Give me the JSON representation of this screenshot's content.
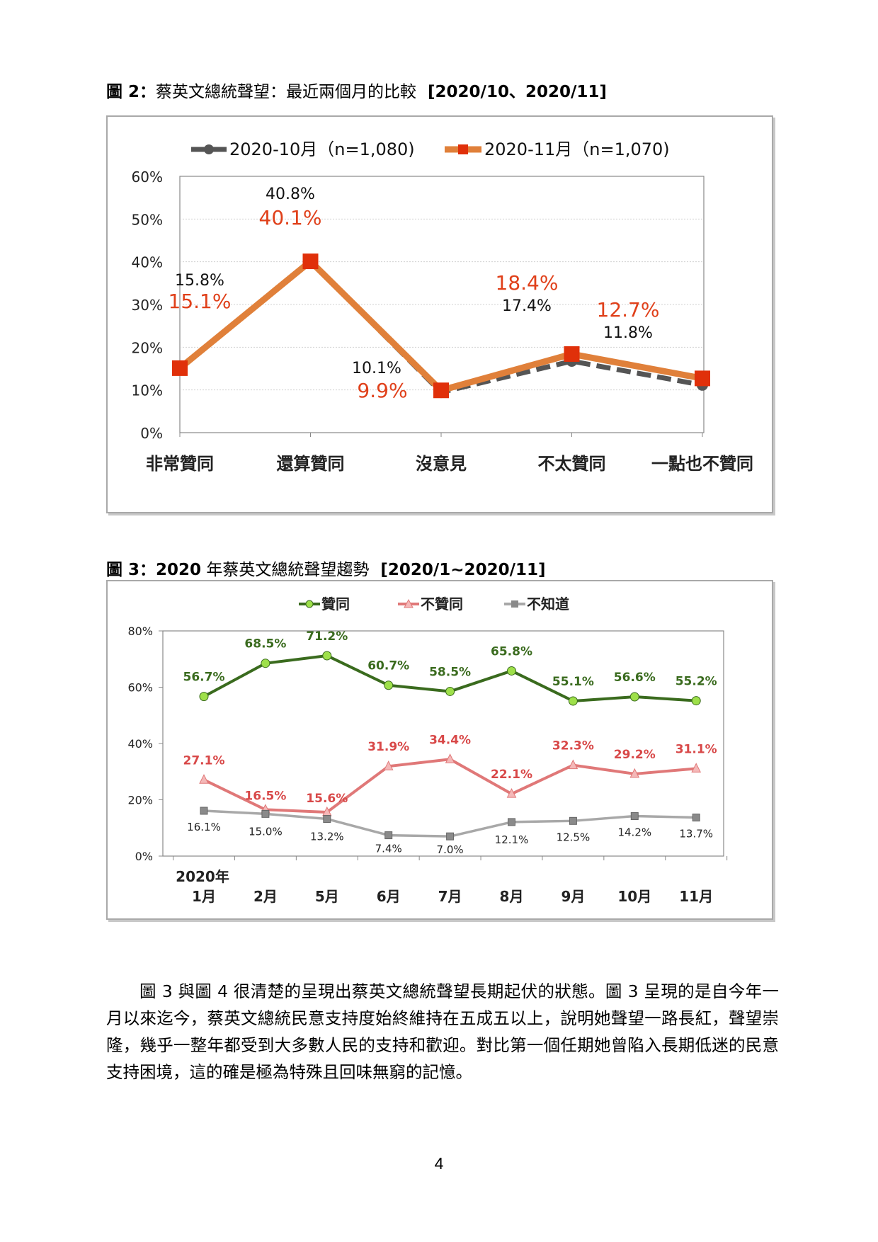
{
  "figure2": {
    "title_label": "圖 2",
    "title_colon": "：",
    "title_text": "蔡英文總統聲望：最近兩個月的比較",
    "title_range": "[2020/10、2020/11]"
  },
  "figure3": {
    "title_label": "圖 3",
    "title_colon": "：",
    "title_year": "2020",
    "title_text": " 年蔡英文總統聲望趨勢",
    "title_range": "[2020/1~2020/11]"
  },
  "body": {
    "paragraph": "圖 3 與圖 4 很清楚的呈現出蔡英文總統聲望長期起伏的狀態。圖 3 呈現的是自今年一月以來迄今，蔡英文總統民意支持度始終維持在五成五以上，說明她聲望一路長紅，聲望崇隆，幾乎一整年都受到大多數人民的支持和歡迎。對比第一個任期她曾陷入長期低迷的民意支持困境，這的確是極為特殊且回味無窮的記憶。"
  },
  "page": {
    "number": "4"
  },
  "chart_data": [
    {
      "type": "line",
      "categories": [
        "非常贊同",
        "還算贊同",
        "沒意見",
        "不太贊同",
        "一點也不贊同"
      ],
      "ylim": [
        0,
        60
      ],
      "yticks": [
        "0%",
        "10%",
        "20%",
        "30%",
        "40%",
        "50%",
        "60%"
      ],
      "grid": true,
      "legend": "top",
      "series": [
        {
          "name": "2020-10月（n=1,080)",
          "values": [
            15.8,
            40.8,
            10.1,
            17.4,
            11.8
          ],
          "labels": [
            "15.8%",
            "40.8%",
            "10.1%",
            "17.4%",
            "11.8%"
          ],
          "color": "#555555",
          "style": "dashed",
          "marker": "circle"
        },
        {
          "name": "2020-11月（n=1,070)",
          "values": [
            15.1,
            40.1,
            9.9,
            18.4,
            12.7
          ],
          "labels": [
            "15.1%",
            "40.1%",
            "9.9%",
            "18.4%",
            "12.7%"
          ],
          "color": "#e0803a",
          "label_color": "#e0401a",
          "marker_color": "#e0300a",
          "style": "solid",
          "marker": "square"
        }
      ]
    },
    {
      "type": "line",
      "categories": [
        "1月",
        "2月",
        "5月",
        "6月",
        "7月",
        "8月",
        "9月",
        "10月",
        "11月"
      ],
      "year_label": "2020年",
      "ylim": [
        0,
        80
      ],
      "yticks": [
        "0%",
        "20%",
        "40%",
        "60%",
        "80%"
      ],
      "grid": false,
      "legend": "top",
      "series": [
        {
          "name": "贊同",
          "values": [
            56.7,
            68.5,
            71.2,
            60.7,
            58.5,
            65.8,
            55.1,
            56.6,
            55.2
          ],
          "labels": [
            "56.7%",
            "68.5%",
            "71.2%",
            "60.7%",
            "58.5%",
            "65.8%",
            "55.1%",
            "56.6%",
            "55.2%"
          ],
          "color": "#3a6b1e",
          "marker_color": "#9ee04a",
          "label_color": "#3a6b1e",
          "marker": "circle"
        },
        {
          "name": "不贊同",
          "values": [
            27.1,
            16.5,
            15.6,
            31.9,
            34.4,
            22.1,
            32.3,
            29.2,
            31.1
          ],
          "labels": [
            "27.1%",
            "16.5%",
            "15.6%",
            "31.9%",
            "34.4%",
            "22.1%",
            "32.3%",
            "29.2%",
            "31.1%"
          ],
          "color": "#e07878",
          "marker_color": "#f4b8b8",
          "label_color": "#d84848",
          "marker": "triangle"
        },
        {
          "name": "不知道",
          "values": [
            16.1,
            15.0,
            13.2,
            7.4,
            7.0,
            12.1,
            12.5,
            14.2,
            13.7
          ],
          "labels": [
            "16.1%",
            "15.0%",
            "13.2%",
            "7.4%",
            "7.0%",
            "12.1%",
            "12.5%",
            "14.2%",
            "13.7%"
          ],
          "color": "#a8a8a8",
          "marker_color": "#8a8a8a",
          "label_color": "#222222",
          "marker": "square-x"
        }
      ]
    }
  ]
}
